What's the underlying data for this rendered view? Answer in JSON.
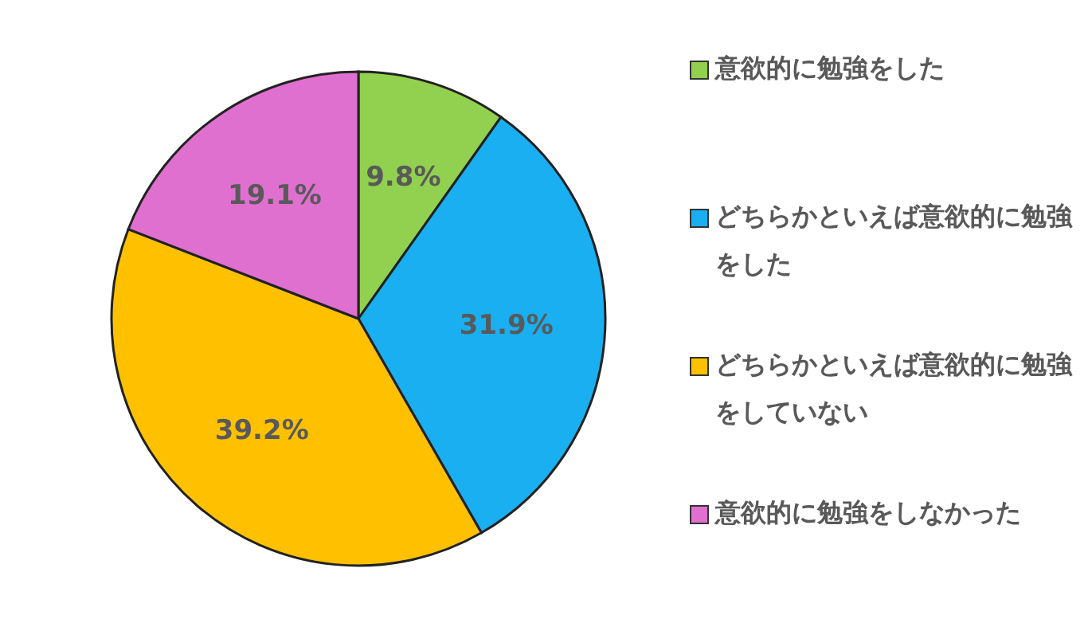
{
  "chart_data": {
    "type": "pie",
    "categories": [
      "意欲的に勉強をした",
      "どちらかといえば意欲的に勉強をした",
      "どちらかといえば意欲的に勉強をしていない",
      "意欲的に勉強をしなかった"
    ],
    "values": [
      9.8,
      31.9,
      39.2,
      19.1
    ],
    "value_labels": [
      "9.8%",
      "31.9%",
      "39.2%",
      "19.1%"
    ],
    "colors": [
      "#92d050",
      "#1aaff0",
      "#ffc000",
      "#e070d0"
    ],
    "legend": "right"
  }
}
